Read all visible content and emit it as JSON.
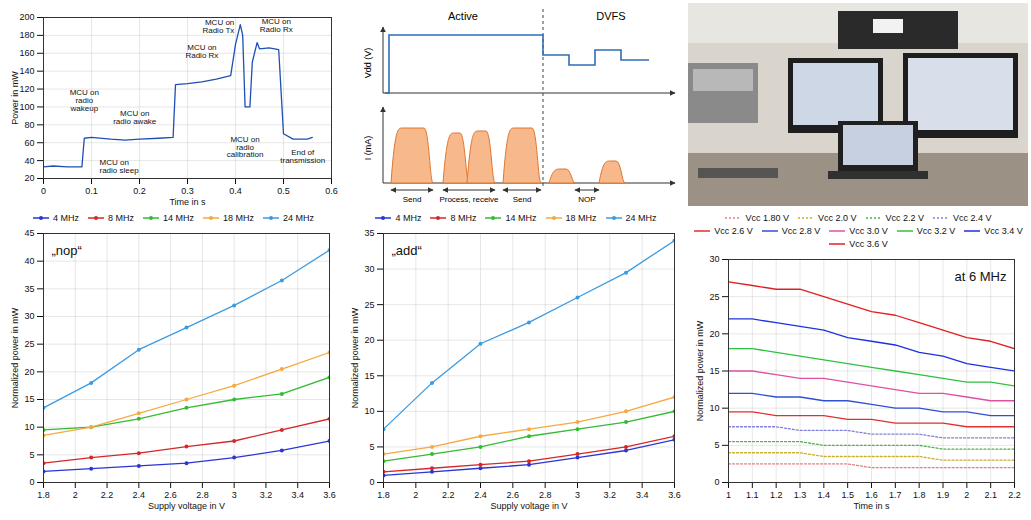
{
  "chart_data": [
    {
      "type": "line",
      "x_label": "Time in s",
      "y_label": "Power in mW",
      "xlim": [
        0,
        0.6
      ],
      "xticks": [
        0,
        0.1,
        0.2,
        0.3,
        0.4,
        0.5,
        0.6
      ],
      "ylim": [
        20,
        200
      ],
      "yticks": [
        20,
        40,
        60,
        80,
        100,
        120,
        140,
        160,
        180,
        200
      ],
      "grid": true,
      "color": "#1f4fb4",
      "x": [
        0,
        0.02,
        0.05,
        0.08,
        0.085,
        0.1,
        0.14,
        0.17,
        0.2,
        0.24,
        0.27,
        0.275,
        0.3,
        0.33,
        0.36,
        0.39,
        0.4,
        0.41,
        0.415,
        0.42,
        0.43,
        0.435,
        0.445,
        0.45,
        0.47,
        0.49,
        0.5,
        0.52,
        0.55,
        0.56
      ],
      "values": [
        33,
        34,
        33,
        33,
        65,
        66,
        64,
        63,
        64,
        65,
        66,
        125,
        126,
        128,
        131,
        135,
        170,
        192,
        180,
        100,
        100,
        150,
        172,
        165,
        166,
        164,
        70,
        64,
        64,
        66
      ],
      "annotations": [
        {
          "text": "MCU on radio sleep",
          "x": 0.1,
          "y": 33
        },
        {
          "text": "MCU on radio wakeup",
          "x": 0.085,
          "y": 65
        },
        {
          "text": "MCU on radio awake",
          "x": 0.19,
          "y": 64
        },
        {
          "text": "MCU on Radio Rx",
          "x": 0.33,
          "y": 128
        },
        {
          "text": "MCU on radio calibration",
          "x": 0.42,
          "y": 100
        },
        {
          "text": "MCU on Radio Tx",
          "x": 0.41,
          "y": 192
        },
        {
          "text": "MCU on Radio Rx",
          "x": 0.46,
          "y": 166
        },
        {
          "text": "End of transmission",
          "x": 0.54,
          "y": 65
        }
      ]
    },
    {
      "type": "line",
      "title": "„nop“",
      "x_label": "Supply voltage in V",
      "y_label": "Normalized power in mW",
      "xlim": [
        1.8,
        3.6
      ],
      "xticks": [
        1.8,
        2,
        2.2,
        2.4,
        2.6,
        2.8,
        3,
        3.2,
        3.4,
        3.6
      ],
      "ylim": [
        0,
        45
      ],
      "yticks": [
        0,
        5,
        10,
        15,
        20,
        25,
        30,
        35,
        40,
        45
      ],
      "grid": true,
      "legend": "top",
      "marker": "circle",
      "x": [
        1.8,
        2.1,
        2.4,
        2.7,
        3.0,
        3.3,
        3.6
      ],
      "series": [
        {
          "name": "4 MHz",
          "color": "#2a35d4",
          "values": [
            2,
            2.5,
            3,
            3.5,
            4.5,
            5.8,
            7.5
          ]
        },
        {
          "name": "8 MHz",
          "color": "#d62728",
          "values": [
            3.5,
            4.5,
            5.3,
            6.5,
            7.5,
            9.5,
            11.5
          ]
        },
        {
          "name": "14 MHz",
          "color": "#33bb33",
          "values": [
            9.5,
            10,
            11.5,
            13.5,
            15,
            16,
            19
          ]
        },
        {
          "name": "18 MHz",
          "color": "#f5a940",
          "values": [
            8.5,
            10,
            12.5,
            15,
            17.5,
            20.5,
            23.5
          ]
        },
        {
          "name": "24 MHz",
          "color": "#3c9be0",
          "values": [
            13.5,
            18,
            24,
            28,
            32,
            36.5,
            42
          ]
        }
      ]
    },
    {
      "type": "line",
      "title": "„add“",
      "x_label": "Supply voltage in V",
      "y_label": "Normalized power in mW",
      "xlim": [
        1.8,
        3.6
      ],
      "xticks": [
        1.8,
        2,
        2.2,
        2.4,
        2.6,
        2.8,
        3,
        3.2,
        3.4,
        3.6
      ],
      "ylim": [
        0,
        35
      ],
      "yticks": [
        0,
        5,
        10,
        15,
        20,
        25,
        30,
        35
      ],
      "grid": true,
      "legend": "top",
      "marker": "circle",
      "x": [
        1.8,
        2.1,
        2.4,
        2.7,
        3.0,
        3.3,
        3.6
      ],
      "series": [
        {
          "name": "4 MHz",
          "color": "#2a35d4",
          "values": [
            1,
            1.5,
            2,
            2.5,
            3.5,
            4.5,
            6
          ]
        },
        {
          "name": "8 MHz",
          "color": "#d62728",
          "values": [
            1.5,
            2,
            2.5,
            3,
            4,
            5,
            6.5
          ]
        },
        {
          "name": "14 MHz",
          "color": "#33bb33",
          "values": [
            3,
            4,
            5,
            6.5,
            7.5,
            8.5,
            10
          ]
        },
        {
          "name": "18 MHz",
          "color": "#f5a940",
          "values": [
            4,
            5,
            6.5,
            7.5,
            8.5,
            10,
            12
          ]
        },
        {
          "name": "24 MHz",
          "color": "#3c9be0",
          "values": [
            7.5,
            14,
            19.5,
            22.5,
            26,
            29.5,
            34
          ]
        }
      ]
    },
    {
      "type": "line",
      "title": "at 6 MHz",
      "x_label": "Time in s",
      "y_label": "Normalized power in mW",
      "xlim": [
        1,
        2.2
      ],
      "xticks": [
        1,
        1.1,
        1.2,
        1.3,
        1.4,
        1.5,
        1.6,
        1.7,
        1.8,
        1.9,
        2,
        2.1,
        2.2
      ],
      "ylim": [
        0,
        30
      ],
      "yticks": [
        0,
        5,
        10,
        15,
        20,
        25,
        30
      ],
      "grid": true,
      "legend": "top",
      "x": [
        1,
        1.1,
        1.2,
        1.3,
        1.4,
        1.5,
        1.6,
        1.7,
        1.8,
        1.9,
        2,
        2.1,
        2.2
      ],
      "series": [
        {
          "name": "Vcc 1.80 V",
          "color": "#e08080",
          "line_style": "dotted",
          "values": [
            2.5,
            2.5,
            2.5,
            2.5,
            2.5,
            2.5,
            2,
            2,
            2,
            2,
            2,
            2,
            2
          ]
        },
        {
          "name": "Vcc 2.0 V",
          "color": "#c8b030",
          "line_style": "dotted",
          "values": [
            4,
            4,
            4,
            4,
            3.5,
            3.5,
            3.5,
            3.5,
            3.5,
            3,
            3,
            3,
            3
          ]
        },
        {
          "name": "Vcc 2.2 V",
          "color": "#50b050",
          "line_style": "dotted",
          "values": [
            5.5,
            5.5,
            5.5,
            5.5,
            5,
            5,
            5,
            5,
            5,
            4.5,
            4.5,
            4.5,
            4.5
          ]
        },
        {
          "name": "Vcc 2.4 V",
          "color": "#8080d8",
          "line_style": "dotted",
          "values": [
            7.5,
            7.5,
            7.5,
            7,
            7,
            7,
            6.5,
            6.5,
            6.5,
            6,
            6,
            6,
            6
          ]
        },
        {
          "name": "Vcc 2.6 V",
          "color": "#e03030",
          "line_style": "solid",
          "values": [
            9.5,
            9.5,
            9,
            9,
            9,
            8.5,
            8.5,
            8,
            8,
            8,
            7.5,
            7.5,
            7.5
          ]
        },
        {
          "name": "Vcc 2.8 V",
          "color": "#3050d0",
          "line_style": "solid",
          "values": [
            12,
            12,
            11.5,
            11.5,
            11,
            11,
            10.5,
            10,
            10,
            9.5,
            9.5,
            9,
            9
          ]
        },
        {
          "name": "Vcc 3.0 V",
          "color": "#e050a0",
          "line_style": "solid",
          "values": [
            15,
            15,
            14.5,
            14,
            14,
            13.5,
            13,
            12.5,
            12,
            12,
            11.5,
            11,
            11
          ]
        },
        {
          "name": "Vcc 3.2 V",
          "color": "#30c040",
          "line_style": "solid",
          "values": [
            18,
            18,
            17.5,
            17,
            16.5,
            16,
            15.5,
            15,
            14.5,
            14,
            13.5,
            13.5,
            13
          ]
        },
        {
          "name": "Vcc 3.4 V",
          "color": "#2030e0",
          "line_style": "solid",
          "values": [
            22,
            22,
            21.5,
            21,
            20.5,
            19.5,
            19,
            18.5,
            17.5,
            17,
            16,
            15.5,
            15
          ]
        },
        {
          "name": "Vcc 3.6 V",
          "color": "#e02020",
          "line_style": "solid",
          "values": [
            27,
            26.5,
            26,
            26,
            25,
            24,
            23,
            22.5,
            21.5,
            20.5,
            19.5,
            19,
            18
          ]
        }
      ]
    }
  ],
  "diagram": {
    "regions": [
      "Active",
      "DVFS"
    ],
    "axes": [
      "Vdd (V)",
      "I (mA)"
    ],
    "phases": [
      "Send",
      "Process, receive",
      "Send",
      "NOP"
    ]
  }
}
